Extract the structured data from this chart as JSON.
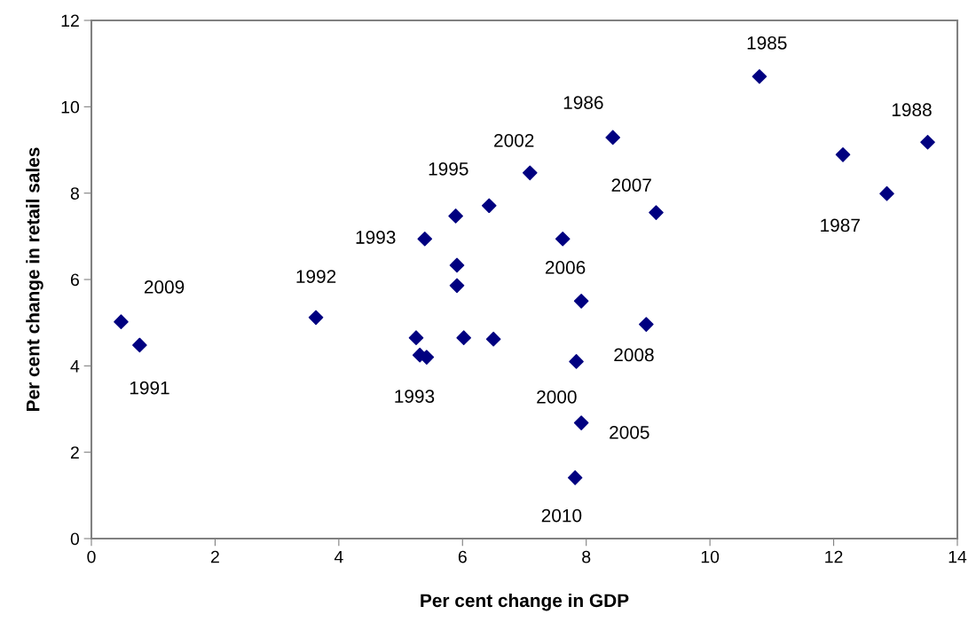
{
  "chart_data": {
    "type": "scatter",
    "xlabel": "Per cent change in GDP",
    "ylabel": "Per cent change in retail sales",
    "xlim": [
      0,
      14
    ],
    "xticks": [
      0,
      2,
      4,
      6,
      8,
      10,
      12,
      14
    ],
    "ylim": [
      0,
      12
    ],
    "yticks": [
      0,
      2,
      4,
      6,
      8,
      10,
      12
    ],
    "marker": "diamond",
    "series": [
      {
        "color": "#000080",
        "x": [
          0.48,
          0.78,
          3.63,
          5.25,
          5.31,
          5.42,
          8.43,
          7.09,
          6.43,
          5.89,
          5.39,
          7.62,
          9.13,
          5.91,
          5.91,
          7.92,
          8.97,
          6.02,
          6.5,
          7.84,
          7.92,
          7.82,
          10.8,
          12.15,
          13.52,
          12.86
        ],
        "values": [
          5.02,
          4.48,
          5.12,
          4.65,
          4.25,
          4.2,
          9.29,
          8.47,
          7.71,
          7.47,
          6.94,
          6.94,
          7.55,
          6.33,
          5.86,
          5.5,
          4.96,
          4.65,
          4.62,
          4.1,
          2.68,
          1.41,
          10.7,
          8.89,
          9.18,
          7.99
        ]
      }
    ],
    "annotations": [
      {
        "text": "2009",
        "x": 0.48,
        "y": 5.02
      },
      {
        "text": "1991",
        "x": 0.78,
        "y": 4.48
      },
      {
        "text": "1992",
        "x": 3.63,
        "y": 5.12
      },
      {
        "text": "1993",
        "x": 5.39,
        "y": 6.94
      },
      {
        "text": "1993",
        "x": 5.42,
        "y": 4.2
      },
      {
        "text": "1995",
        "x": 5.89,
        "y": 7.47
      },
      {
        "text": "2002",
        "x": 7.09,
        "y": 8.47
      },
      {
        "text": "1986",
        "x": 8.43,
        "y": 9.29
      },
      {
        "text": "2007",
        "x": 9.13,
        "y": 7.55
      },
      {
        "text": "2006",
        "x": 7.92,
        "y": 5.5
      },
      {
        "text": "2008",
        "x": 8.97,
        "y": 4.96
      },
      {
        "text": "2000",
        "x": 7.84,
        "y": 4.1
      },
      {
        "text": "2005",
        "x": 7.92,
        "y": 2.68
      },
      {
        "text": "2010",
        "x": 7.82,
        "y": 1.41
      },
      {
        "text": "1985",
        "x": 10.8,
        "y": 10.7
      },
      {
        "text": "1988",
        "x": 13.52,
        "y": 9.18
      },
      {
        "text": "1987",
        "x": 12.86,
        "y": 7.99
      }
    ]
  }
}
